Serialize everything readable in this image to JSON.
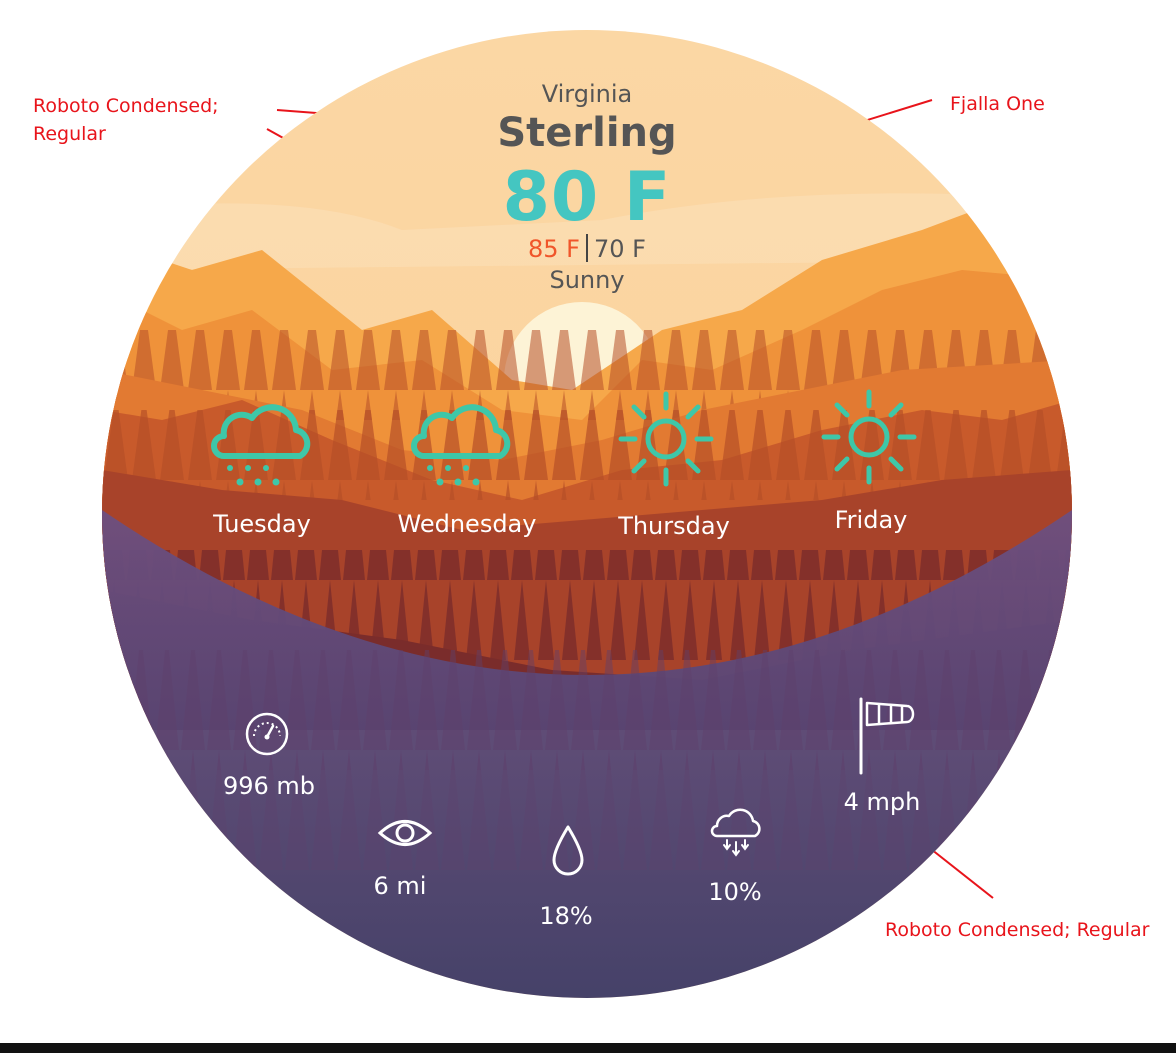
{
  "annotations": {
    "left_line1": "Roboto Condensed;",
    "left_line2": "Regular",
    "right_top": "Fjalla One",
    "bottom_right": "Roboto Condensed; Regular"
  },
  "location": {
    "region": "Virginia",
    "city": "Sterling"
  },
  "current": {
    "temperature": "80 F",
    "high": "85 F",
    "low": "70 F",
    "condition": "Sunny"
  },
  "forecast": [
    {
      "day": "Tuesday",
      "icon": "rain-cloud-icon"
    },
    {
      "day": "Wednesday",
      "icon": "rain-cloud-icon"
    },
    {
      "day": "Thursday",
      "icon": "sun-icon"
    },
    {
      "day": "Friday",
      "icon": "sun-icon"
    }
  ],
  "stats": {
    "pressure": {
      "value": "996 mb",
      "icon": "gauge-icon"
    },
    "visibility": {
      "value": "6 mi",
      "icon": "eye-icon"
    },
    "humidity": {
      "value": "18%",
      "icon": "droplet-icon"
    },
    "precipitation": {
      "value": "10%",
      "icon": "cloud-precipitation-icon"
    },
    "wind": {
      "value": "4 mph",
      "icon": "windsock-icon"
    }
  },
  "colors": {
    "accent_temperature": "#44c6c1",
    "high_temperature": "#f0552a",
    "annotation": "#e8141b",
    "icon_teal": "#3ec7a8"
  }
}
